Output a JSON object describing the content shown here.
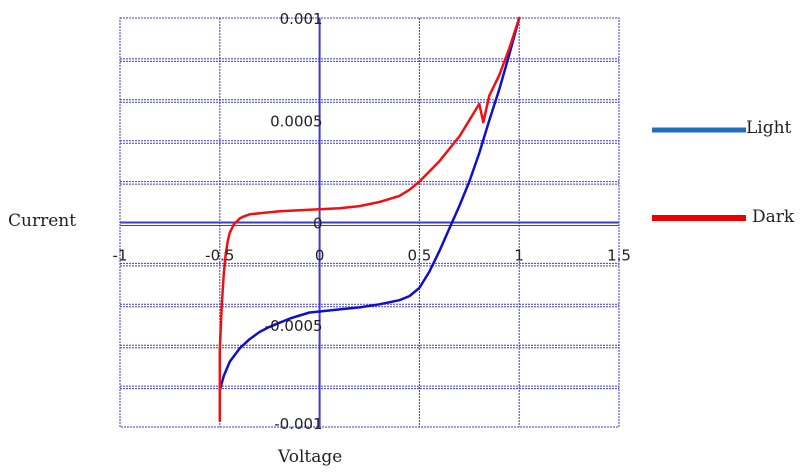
{
  "chart_data": {
    "type": "line",
    "xlabel": "Voltage",
    "ylabel": "Current",
    "xlim": [
      -1,
      1.5
    ],
    "ylim": [
      -0.001,
      0.001
    ],
    "x_ticks": [
      "-1",
      "-0.5",
      "0",
      "0.5",
      "1",
      "1.5"
    ],
    "x_tick_values": [
      -1,
      -0.5,
      0,
      0.5,
      1,
      1.5
    ],
    "y_ticks": [
      "0.001",
      "0.0005",
      "0",
      "-0.0005",
      "-0.001"
    ],
    "y_tick_values": [
      0.001,
      0.0005,
      0,
      -0.0005,
      -0.001
    ],
    "grid": true,
    "legend_position": "right",
    "series": [
      {
        "name": "Light",
        "legend_color": "#1f6fc1",
        "line_color": "#1010cc",
        "x": [
          -0.5,
          -0.48,
          -0.45,
          -0.4,
          -0.35,
          -0.3,
          -0.25,
          -0.2,
          -0.15,
          -0.1,
          -0.05,
          0,
          0.1,
          0.2,
          0.3,
          0.4,
          0.45,
          0.5,
          0.55,
          0.6,
          0.65,
          0.7,
          0.75,
          0.8,
          0.85,
          0.9,
          0.95,
          1.0
        ],
        "y": [
          -0.00082,
          -0.00075,
          -0.00068,
          -0.000615,
          -0.00057,
          -0.000535,
          -0.00051,
          -0.00049,
          -0.00047,
          -0.000455,
          -0.00044,
          -0.000435,
          -0.000425,
          -0.000415,
          -0.0004,
          -0.00038,
          -0.00036,
          -0.00032,
          -0.00024,
          -0.00014,
          -3e-05,
          8e-05,
          0.0002,
          0.00034,
          0.0005,
          0.00065,
          0.00082,
          0.001
        ]
      },
      {
        "name": "Dark",
        "legend_color": "#ee0000",
        "line_color": "#ee1111",
        "x": [
          -0.5,
          -0.5,
          -0.49,
          -0.48,
          -0.47,
          -0.46,
          -0.45,
          -0.43,
          -0.4,
          -0.38,
          -0.35,
          -0.3,
          -0.25,
          -0.2,
          -0.1,
          0,
          0.1,
          0.2,
          0.3,
          0.4,
          0.45,
          0.5,
          0.55,
          0.6,
          0.65,
          0.7,
          0.75,
          0.8,
          0.82,
          0.85,
          0.9,
          0.95,
          1.0
        ],
        "y": [
          -0.00097,
          -0.00062,
          -0.0004,
          -0.00025,
          -0.00015,
          -9e-05,
          -5e-05,
          -1e-05,
          2e-05,
          3e-05,
          4e-05,
          4.5e-05,
          5e-05,
          5.5e-05,
          6e-05,
          6.5e-05,
          7e-05,
          8e-05,
          0.0001,
          0.00013,
          0.00016,
          0.0002,
          0.00025,
          0.0003,
          0.00036,
          0.00042,
          0.0005,
          0.00058,
          0.00049,
          0.00062,
          0.00072,
          0.00085,
          0.001
        ]
      }
    ]
  }
}
